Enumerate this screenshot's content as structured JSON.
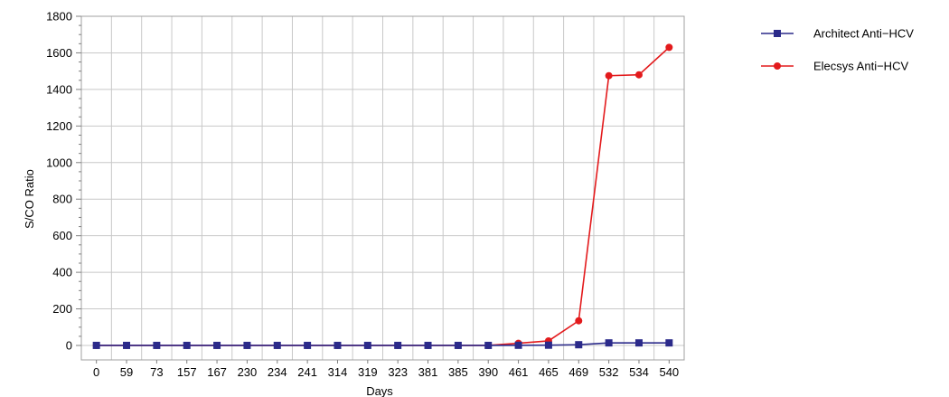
{
  "chart_data": {
    "type": "line",
    "title": "",
    "xlabel": "Days",
    "ylabel": "S/CO Ratio",
    "categories": [
      "0",
      "59",
      "73",
      "157",
      "167",
      "230",
      "234",
      "241",
      "314",
      "319",
      "323",
      "381",
      "385",
      "390",
      "461",
      "465",
      "469",
      "532",
      "534",
      "540"
    ],
    "ylim": [
      0,
      1800
    ],
    "yticks": [
      0,
      200,
      400,
      600,
      800,
      1000,
      1200,
      1400,
      1600,
      1800
    ],
    "grid": true,
    "legend_position": "top-right",
    "series": [
      {
        "name": "Architect Anti−HCV",
        "color": "#2b2a8a",
        "marker": "square",
        "values": [
          0.3,
          0.3,
          0.3,
          0.3,
          0.3,
          0.3,
          0.3,
          0.3,
          0.3,
          0.3,
          0.3,
          0.3,
          0.3,
          0.3,
          1,
          1.5,
          4,
          14,
          14,
          14
        ]
      },
      {
        "name": "Elecsys Anti−HCV",
        "color": "#e31a1c",
        "marker": "circle",
        "values": [
          0.1,
          0.1,
          0.1,
          0.1,
          0.1,
          0.1,
          0.1,
          0.1,
          0.1,
          0.1,
          0.1,
          0.1,
          0.1,
          0.1,
          12,
          25,
          135,
          1475,
          1480,
          1630
        ]
      }
    ]
  }
}
